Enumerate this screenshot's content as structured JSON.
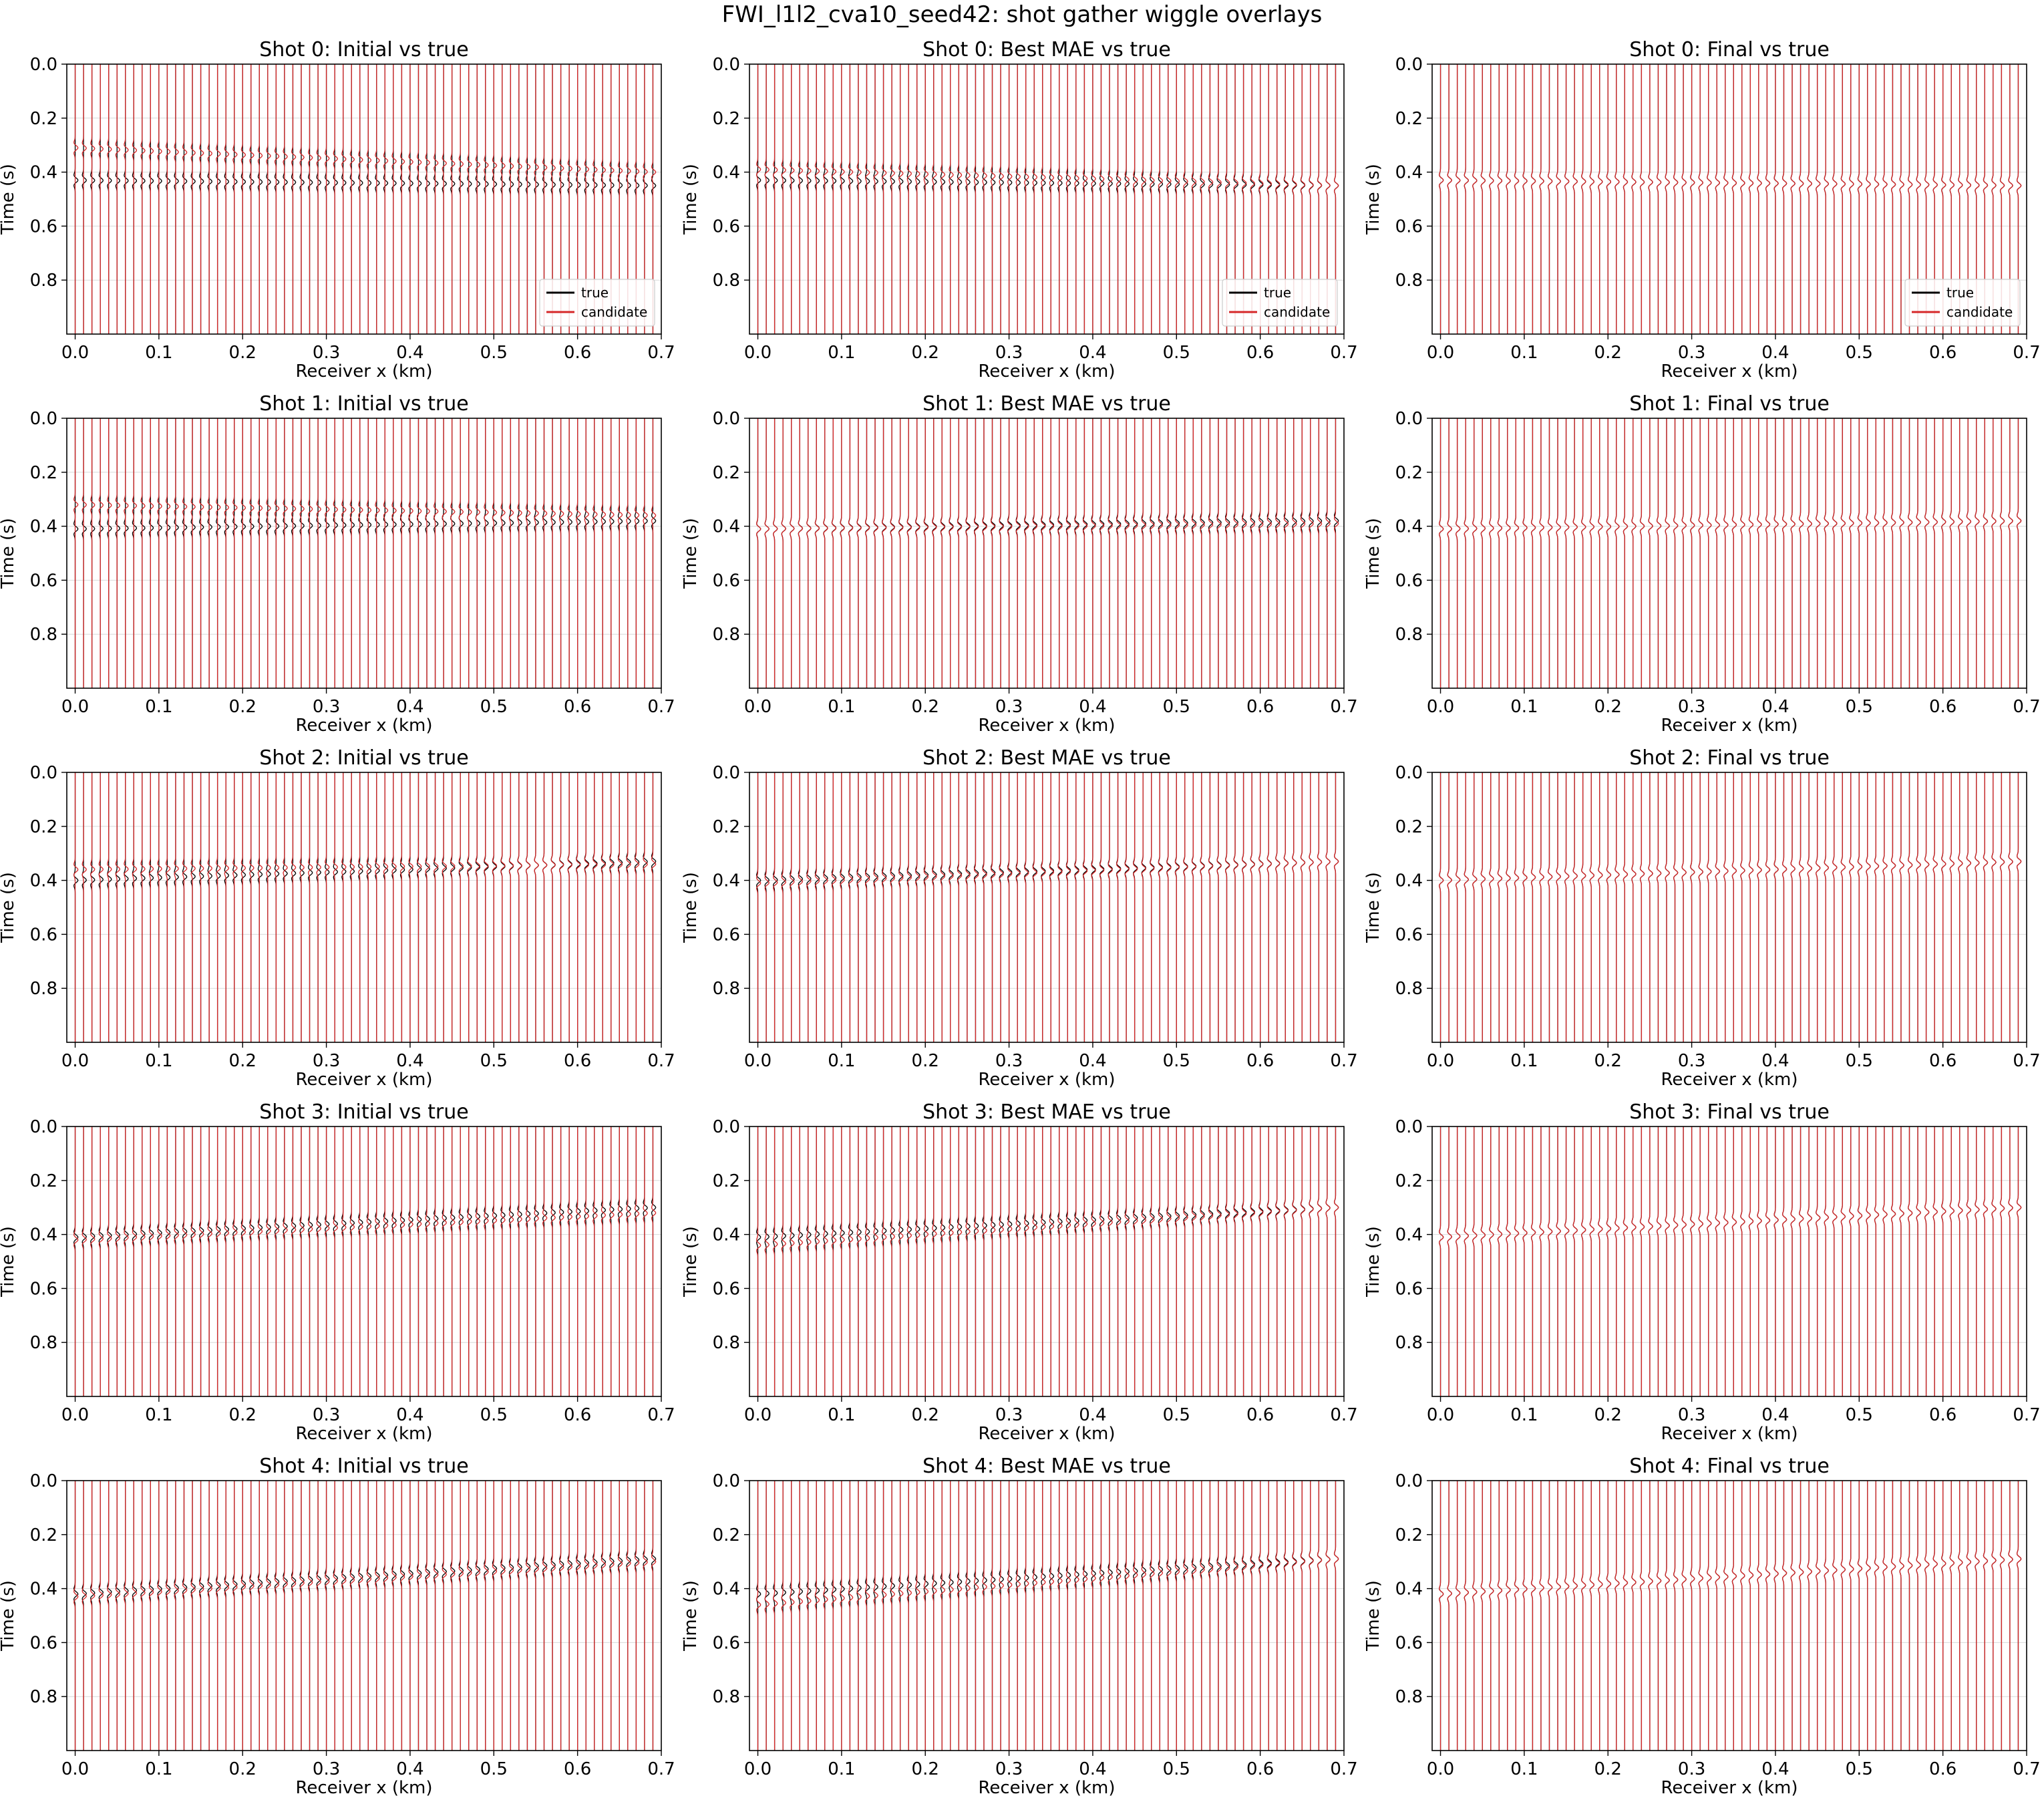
{
  "figure": {
    "title": "FWI_l1l2_cva10_seed42: shot gather wiggle overlays"
  },
  "legend": {
    "entries": [
      {
        "label": "true",
        "color": "#000000"
      },
      {
        "label": "candidate",
        "color": "#d62728"
      }
    ],
    "placement": "lower right",
    "shown_in": "top row only"
  },
  "chart_data": {
    "type": "line",
    "description_of_layout": "5 rows (shots 0-4) x 3 columns (Initial, Best MAE, Final) of wiggle-trace overlays",
    "xlabel": "Receiver x (km)",
    "ylabel": "Time (s)",
    "xlim": [
      -0.01,
      0.7
    ],
    "ylim": [
      1.0,
      0.0
    ],
    "y_inverted": true,
    "xticks": [
      "0.0",
      "0.1",
      "0.2",
      "0.3",
      "0.4",
      "0.5",
      "0.6",
      "0.7"
    ],
    "yticks": [
      "0.0",
      "0.2",
      "0.4",
      "0.6",
      "0.8"
    ],
    "receivers": {
      "count": 70,
      "first_x": 0.0,
      "spacing_km": 0.01
    },
    "grid": true,
    "series": [
      {
        "name": "true",
        "color": "#000000"
      },
      {
        "name": "candidate",
        "color": "#d62728"
      }
    ],
    "panels": [
      {
        "title": "Shot 0: Initial vs true",
        "shot": 0,
        "stage": "Initial",
        "legend": true,
        "true_arrival_first": 0.43,
        "true_arrival_last": 0.45,
        "candidate_arrival_first": 0.31,
        "candidate_arrival_last": 0.4
      },
      {
        "title": "Shot 0: Best MAE vs true",
        "shot": 0,
        "stage": "Best MAE",
        "legend": true,
        "true_arrival_first": 0.43,
        "true_arrival_last": 0.45,
        "candidate_arrival_first": 0.39,
        "candidate_arrival_last": 0.45
      },
      {
        "title": "Shot 0: Final vs true",
        "shot": 0,
        "stage": "Final",
        "legend": true,
        "true_arrival_first": 0.43,
        "true_arrival_last": 0.45,
        "candidate_arrival_first": 0.43,
        "candidate_arrival_last": 0.45
      },
      {
        "title": "Shot 1: Initial vs true",
        "shot": 1,
        "stage": "Initial",
        "legend": false,
        "true_arrival_first": 0.41,
        "true_arrival_last": 0.38,
        "candidate_arrival_first": 0.32,
        "candidate_arrival_last": 0.36
      },
      {
        "title": "Shot 1: Best MAE vs true",
        "shot": 1,
        "stage": "Best MAE",
        "legend": false,
        "true_arrival_first": 0.41,
        "true_arrival_last": 0.38,
        "candidate_arrival_first": 0.41,
        "candidate_arrival_last": 0.39
      },
      {
        "title": "Shot 1: Final vs true",
        "shot": 1,
        "stage": "Final",
        "legend": false,
        "true_arrival_first": 0.41,
        "true_arrival_last": 0.38,
        "candidate_arrival_first": 0.41,
        "candidate_arrival_last": 0.38
      },
      {
        "title": "Shot 2: Initial vs true",
        "shot": 2,
        "stage": "Initial",
        "legend": false,
        "true_arrival_first": 0.4,
        "true_arrival_last": 0.33,
        "candidate_arrival_first": 0.36,
        "candidate_arrival_last": 0.34
      },
      {
        "title": "Shot 2: Best MAE vs true",
        "shot": 2,
        "stage": "Best MAE",
        "legend": false,
        "true_arrival_first": 0.4,
        "true_arrival_last": 0.33,
        "candidate_arrival_first": 0.41,
        "candidate_arrival_last": 0.33
      },
      {
        "title": "Shot 2: Final vs true",
        "shot": 2,
        "stage": "Final",
        "legend": false,
        "true_arrival_first": 0.4,
        "true_arrival_last": 0.33,
        "candidate_arrival_first": 0.4,
        "candidate_arrival_last": 0.33
      },
      {
        "title": "Shot 3: Initial vs true",
        "shot": 3,
        "stage": "Initial",
        "legend": false,
        "true_arrival_first": 0.41,
        "true_arrival_last": 0.3,
        "candidate_arrival_first": 0.42,
        "candidate_arrival_last": 0.32
      },
      {
        "title": "Shot 3: Best MAE vs true",
        "shot": 3,
        "stage": "Best MAE",
        "legend": false,
        "true_arrival_first": 0.41,
        "true_arrival_last": 0.3,
        "candidate_arrival_first": 0.44,
        "candidate_arrival_last": 0.3
      },
      {
        "title": "Shot 3: Final vs true",
        "shot": 3,
        "stage": "Final",
        "legend": false,
        "true_arrival_first": 0.41,
        "true_arrival_last": 0.3,
        "candidate_arrival_first": 0.41,
        "candidate_arrival_last": 0.3
      },
      {
        "title": "Shot 4: Initial vs true",
        "shot": 4,
        "stage": "Initial",
        "legend": false,
        "true_arrival_first": 0.42,
        "true_arrival_last": 0.29,
        "candidate_arrival_first": 0.43,
        "candidate_arrival_last": 0.3
      },
      {
        "title": "Shot 4: Best MAE vs true",
        "shot": 4,
        "stage": "Best MAE",
        "legend": false,
        "true_arrival_first": 0.42,
        "true_arrival_last": 0.29,
        "candidate_arrival_first": 0.46,
        "candidate_arrival_last": 0.29
      },
      {
        "title": "Shot 4: Final vs true",
        "shot": 4,
        "stage": "Final",
        "legend": false,
        "true_arrival_first": 0.42,
        "true_arrival_last": 0.29,
        "candidate_arrival_first": 0.42,
        "candidate_arrival_last": 0.29
      }
    ]
  }
}
